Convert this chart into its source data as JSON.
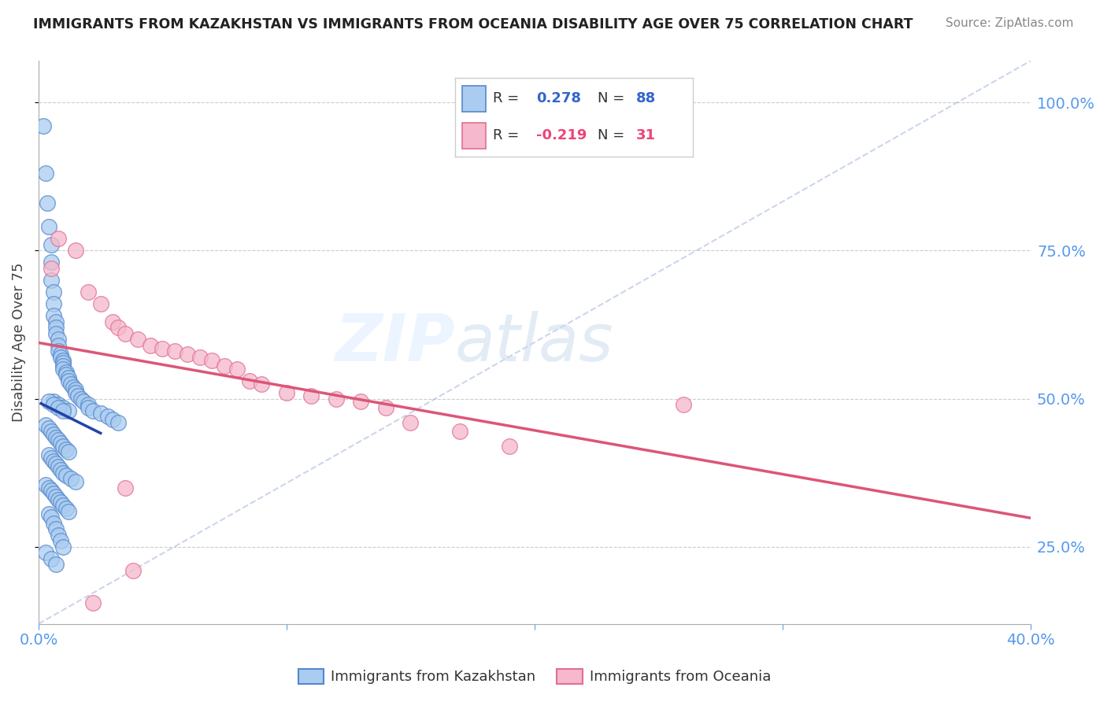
{
  "title": "IMMIGRANTS FROM KAZAKHSTAN VS IMMIGRANTS FROM OCEANIA DISABILITY AGE OVER 75 CORRELATION CHART",
  "source": "Source: ZipAtlas.com",
  "ylabel": "Disability Age Over 75",
  "xlim": [
    0.0,
    40.0
  ],
  "ylim": [
    12.0,
    107.0
  ],
  "yticks": [
    25.0,
    50.0,
    75.0,
    100.0
  ],
  "ytick_labels": [
    "25.0%",
    "50.0%",
    "75.0%",
    "100.0%"
  ],
  "color_kaz": "#aaccf0",
  "color_kaz_edge": "#5588cc",
  "color_kaz_line": "#2244aa",
  "color_oce": "#f5b8cc",
  "color_oce_edge": "#e07090",
  "color_oce_line": "#dd5577",
  "background_color": "#ffffff",
  "grid_color": "#cccccc",
  "watermark": "ZIPatlas",
  "kazakhstan_x": [
    0.2,
    0.3,
    0.35,
    0.4,
    0.5,
    0.5,
    0.5,
    0.6,
    0.6,
    0.6,
    0.7,
    0.7,
    0.7,
    0.8,
    0.8,
    0.8,
    0.9,
    0.9,
    1.0,
    1.0,
    1.0,
    1.0,
    1.1,
    1.1,
    1.2,
    1.2,
    1.3,
    1.4,
    1.5,
    1.5,
    1.6,
    1.7,
    1.8,
    2.0,
    2.0,
    2.2,
    2.5,
    2.8,
    3.0,
    3.2,
    0.3,
    0.4,
    0.5,
    0.6,
    0.7,
    0.8,
    0.9,
    1.0,
    1.1,
    1.2,
    0.4,
    0.5,
    0.6,
    0.7,
    0.8,
    0.9,
    1.0,
    1.1,
    1.3,
    1.5,
    0.3,
    0.4,
    0.5,
    0.6,
    0.7,
    0.8,
    0.9,
    1.0,
    1.1,
    1.2,
    0.4,
    0.5,
    0.6,
    0.7,
    0.8,
    0.9,
    1.0,
    0.3,
    0.5,
    0.7,
    0.6,
    0.8,
    1.0,
    1.2,
    0.4,
    0.6,
    0.8,
    1.0
  ],
  "kazakhstan_y": [
    96.0,
    88.0,
    83.0,
    79.0,
    76.0,
    73.0,
    70.0,
    68.0,
    66.0,
    64.0,
    63.0,
    62.0,
    61.0,
    60.0,
    59.0,
    58.0,
    57.5,
    57.0,
    56.5,
    56.0,
    55.5,
    55.0,
    54.5,
    54.0,
    53.5,
    53.0,
    52.5,
    52.0,
    51.5,
    51.0,
    50.5,
    50.0,
    49.5,
    49.0,
    48.5,
    48.0,
    47.5,
    47.0,
    46.5,
    46.0,
    45.5,
    45.0,
    44.5,
    44.0,
    43.5,
    43.0,
    42.5,
    42.0,
    41.5,
    41.0,
    40.5,
    40.0,
    39.5,
    39.0,
    38.5,
    38.0,
    37.5,
    37.0,
    36.5,
    36.0,
    35.5,
    35.0,
    34.5,
    34.0,
    33.5,
    33.0,
    32.5,
    32.0,
    31.5,
    31.0,
    30.5,
    30.0,
    29.0,
    28.0,
    27.0,
    26.0,
    25.0,
    24.0,
    23.0,
    22.0,
    49.5,
    49.0,
    48.5,
    48.0,
    49.5,
    49.0,
    48.5,
    48.0
  ],
  "oceania_x": [
    0.5,
    0.8,
    1.5,
    2.0,
    2.5,
    3.0,
    3.2,
    3.5,
    4.0,
    4.5,
    5.0,
    5.5,
    6.0,
    6.5,
    7.0,
    7.5,
    8.0,
    8.5,
    9.0,
    10.0,
    11.0,
    12.0,
    13.0,
    14.0,
    15.0,
    17.0,
    19.0,
    26.0,
    3.5,
    3.8,
    2.2
  ],
  "oceania_y": [
    72.0,
    77.0,
    75.0,
    68.0,
    66.0,
    63.0,
    62.0,
    61.0,
    60.0,
    59.0,
    58.5,
    58.0,
    57.5,
    57.0,
    56.5,
    55.5,
    55.0,
    53.0,
    52.5,
    51.0,
    50.5,
    50.0,
    49.5,
    48.5,
    46.0,
    44.5,
    42.0,
    49.0,
    35.0,
    21.0,
    15.5
  ]
}
